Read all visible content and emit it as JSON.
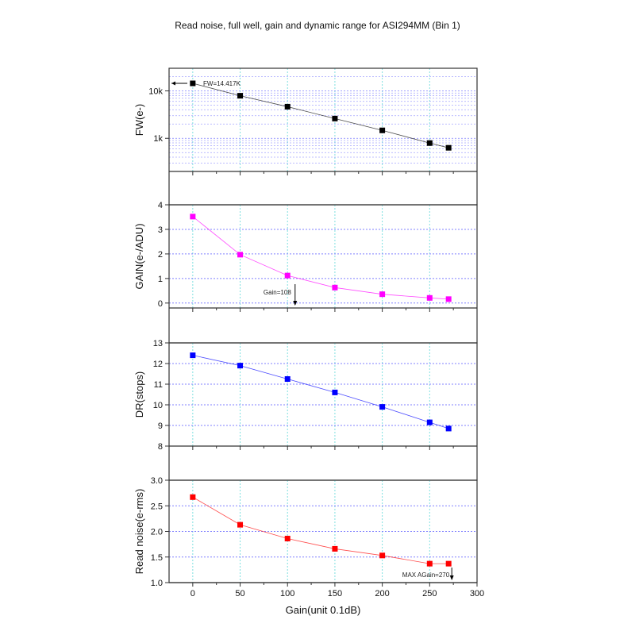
{
  "title": "Read noise, full well, gain and dynamic range for ASI294MM (Bin 1)",
  "chart_data": [
    {
      "type": "line",
      "ylabel": "FW(e-)",
      "yscale": "log",
      "ylim": [
        200,
        30000
      ],
      "yticks": [
        1000,
        10000
      ],
      "ytick_labels": [
        "1k",
        "10k"
      ],
      "color": "#000000",
      "x": [
        0,
        50,
        100,
        150,
        200,
        250,
        270
      ],
      "values": [
        14417,
        7900,
        4640,
        2610,
        1470,
        794,
        631
      ],
      "annotation": "FW=14.417K"
    },
    {
      "type": "line",
      "ylabel": "GAIN(e-/ADU)",
      "yscale": "linear",
      "ylim": [
        -0.2,
        4
      ],
      "yticks": [
        0,
        1,
        2,
        3,
        4
      ],
      "ytick_labels": [
        "0",
        "1",
        "2",
        "3",
        "4"
      ],
      "color": "#ff00ff",
      "x": [
        0,
        50,
        100,
        150,
        200,
        250,
        270
      ],
      "values": [
        3.52,
        1.97,
        1.12,
        0.63,
        0.36,
        0.21,
        0.16
      ],
      "annotation": "Gain=108",
      "annotation_x": 108
    },
    {
      "type": "line",
      "ylabel": "DR(stops)",
      "yscale": "linear",
      "ylim": [
        8,
        13
      ],
      "yticks": [
        8,
        9,
        10,
        11,
        12,
        13
      ],
      "ytick_labels": [
        "8",
        "9",
        "10",
        "11",
        "12",
        "13"
      ],
      "color": "#0000ff",
      "x": [
        0,
        50,
        100,
        150,
        200,
        250,
        270
      ],
      "values": [
        12.4,
        11.9,
        11.25,
        10.6,
        9.9,
        9.15,
        8.85
      ]
    },
    {
      "type": "line",
      "ylabel": "Read noise(e-rms)",
      "yscale": "linear",
      "ylim": [
        1.0,
        3.0
      ],
      "yticks": [
        1.0,
        1.5,
        2.0,
        2.5,
        3.0
      ],
      "ytick_labels": [
        "1.0",
        "1.5",
        "2.0",
        "2.5",
        "3.0"
      ],
      "color": "#ff0000",
      "x": [
        0,
        50,
        100,
        150,
        200,
        250,
        270
      ],
      "values": [
        2.67,
        2.13,
        1.86,
        1.66,
        1.53,
        1.37,
        1.37
      ],
      "annotation": "MAX AGain=270",
      "annotation_x": 270
    }
  ],
  "xaxis": {
    "label": "Gain(unit 0.1dB)",
    "xlim": [
      -25,
      300
    ],
    "ticks": [
      0,
      50,
      100,
      150,
      200,
      250,
      300
    ],
    "tick_labels": [
      "0",
      "50",
      "100",
      "150",
      "200",
      "250",
      "300"
    ]
  },
  "colors": {
    "grid_v": "#7fe0e0",
    "grid_h": "#8080ff",
    "axis": "#333333"
  }
}
